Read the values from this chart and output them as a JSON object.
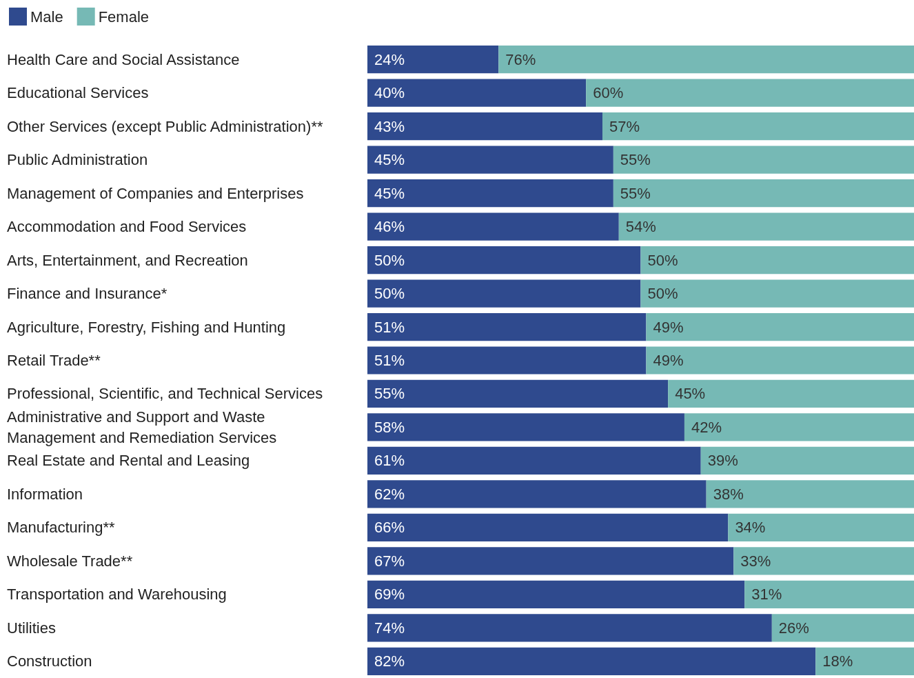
{
  "chart_data": {
    "type": "bar",
    "orientation": "horizontal",
    "stacked": true,
    "legend": "top left",
    "tick_labels": "y",
    "grid": false,
    "categories": [
      "Health Care and Social Assistance",
      "Educational Services",
      "Other Services (except Public Administration)**",
      "Public Administration",
      "Management of Companies and Enterprises",
      "Accommodation and Food Services",
      "Arts, Entertainment, and Recreation",
      "Finance and Insurance*",
      "Agriculture, Forestry, Fishing and Hunting",
      "Retail Trade**",
      "Professional, Scientific, and Technical Services",
      "Administrative and Support and Waste Management and Remediation Services",
      "Real Estate and Rental and Leasing",
      "Information",
      "Manufacturing**",
      "Wholesale Trade**",
      "Transportation and Warehousing",
      "Utilities",
      "Construction"
    ],
    "series": [
      {
        "name": "Male",
        "color": "#2f4a8e",
        "values": [
          24,
          40,
          43,
          45,
          45,
          46,
          50,
          50,
          51,
          51,
          55,
          58,
          61,
          62,
          66,
          67,
          69,
          74,
          82
        ],
        "value_labels": [
          "24%",
          "40%",
          "43%",
          "45%",
          "45%",
          "46%",
          "50%",
          "50%",
          "51%",
          "51%",
          "55%",
          "58%",
          "61%",
          "62%",
          "66%",
          "67%",
          "69%",
          "74%",
          "82%"
        ]
      },
      {
        "name": "Female",
        "color": "#76b9b5",
        "values": [
          76,
          60,
          57,
          55,
          55,
          54,
          50,
          50,
          49,
          49,
          45,
          42,
          39,
          38,
          34,
          33,
          31,
          26,
          18
        ],
        "value_labels": [
          "76%",
          "60%",
          "57%",
          "55%",
          "55%",
          "54%",
          "50%",
          "50%",
          "49%",
          "49%",
          "45%",
          "42%",
          "39%",
          "38%",
          "34%",
          "33%",
          "31%",
          "26%",
          "18%"
        ]
      }
    ]
  }
}
